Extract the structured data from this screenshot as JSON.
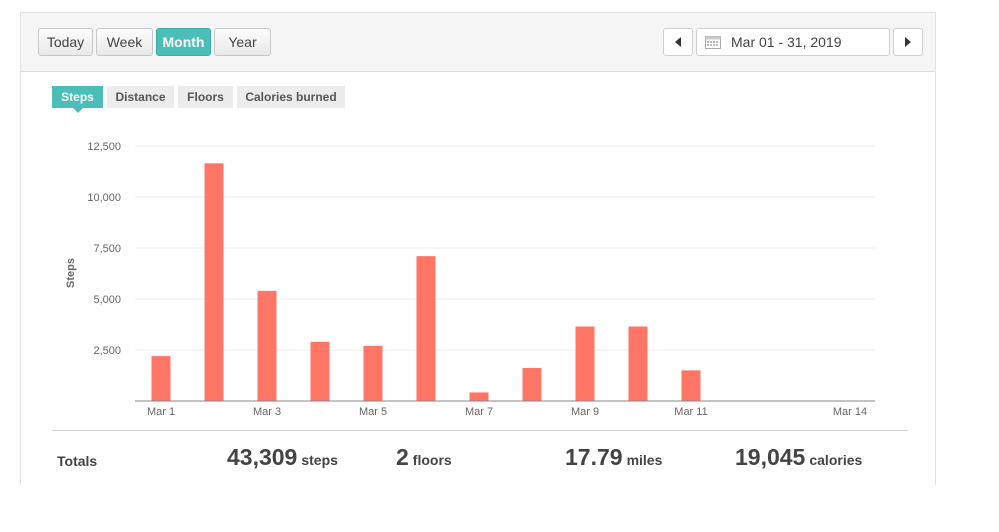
{
  "range_buttons": [
    {
      "label": "Today",
      "active": false
    },
    {
      "label": "Week",
      "active": false
    },
    {
      "label": "Month",
      "active": true
    },
    {
      "label": "Year",
      "active": false
    }
  ],
  "date_range": "Mar 01 - 31, 2019",
  "metric_tabs": [
    {
      "label": "Steps",
      "active": true
    },
    {
      "label": "Distance",
      "active": false
    },
    {
      "label": "Floors",
      "active": false
    },
    {
      "label": "Calories burned",
      "active": false
    }
  ],
  "colors": {
    "accent": "#4bbfb7",
    "bar": "#ff7566",
    "axis": "#888888",
    "grid": "#eeeeee"
  },
  "chart_data": {
    "type": "bar",
    "ylabel": "Steps",
    "ylim": [
      0,
      12500
    ],
    "yticks": [
      2500,
      5000,
      7500,
      10000,
      12500
    ],
    "ytick_labels": [
      "2,500",
      "5,000",
      "7,500",
      "10,000",
      "12,500"
    ],
    "categories": [
      "Mar 1",
      "Mar 2",
      "Mar 3",
      "Mar 4",
      "Mar 5",
      "Mar 6",
      "Mar 7",
      "Mar 8",
      "Mar 9",
      "Mar 10",
      "Mar 11",
      "Mar 12",
      "Mar 13",
      "Mar 14"
    ],
    "xtick_labels": [
      "Mar 1",
      "Mar 3",
      "Mar 5",
      "Mar 7",
      "Mar 9",
      "Mar 11",
      "Mar 14"
    ],
    "values": [
      2200,
      11650,
      5400,
      2900,
      2700,
      7100,
      420,
      1620,
      3650,
      3650,
      1500,
      0,
      0,
      0
    ]
  },
  "totals": {
    "label": "Totals",
    "steps": {
      "value": "43,309",
      "unit": "steps"
    },
    "floors": {
      "value": "2",
      "unit": "floors"
    },
    "miles": {
      "value": "17.79",
      "unit": "miles"
    },
    "calories": {
      "value": "19,045",
      "unit": "calories"
    }
  }
}
